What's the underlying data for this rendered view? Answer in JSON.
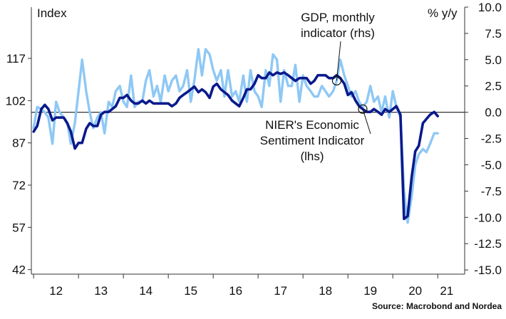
{
  "chart_data": {
    "type": "line",
    "left_axis_label": "Index",
    "right_axis_label": "% y/y",
    "source": "Source: Macrobond and Nordea",
    "colors": {
      "esi": "#0a1a8c",
      "gdp": "#8ec8f5",
      "zero_line": "#333333"
    },
    "x_ticks": [
      {
        "x": 2012.5,
        "label": "12"
      },
      {
        "x": 2013.5,
        "label": "13"
      },
      {
        "x": 2014.5,
        "label": "14"
      },
      {
        "x": 2015.5,
        "label": "15"
      },
      {
        "x": 2016.5,
        "label": "16"
      },
      {
        "x": 2017.5,
        "label": "17"
      },
      {
        "x": 2018.5,
        "label": "18"
      },
      {
        "x": 2019.5,
        "label": "19"
      },
      {
        "x": 2020.5,
        "label": "20"
      },
      {
        "x": 2021.2,
        "label": "21"
      }
    ],
    "xlim": [
      2011.95,
      2021.6
    ],
    "left_axis": {
      "ylim": [
        40.4,
        135.2
      ],
      "ticks": [
        {
          "v": 117,
          "label": "117"
        },
        {
          "v": 102,
          "label": "102"
        },
        {
          "v": 87,
          "label": "87"
        },
        {
          "v": 72,
          "label": "72"
        },
        {
          "v": 57,
          "label": "57"
        },
        {
          "v": 42,
          "label": "42"
        }
      ]
    },
    "right_axis": {
      "ylim": [
        -15.4,
        10.0
      ],
      "ticks": [
        {
          "v": 10,
          "label": "10.0"
        },
        {
          "v": 7.5,
          "label": "7.5"
        },
        {
          "v": 5,
          "label": "5.0"
        },
        {
          "v": 2.5,
          "label": "2.5"
        },
        {
          "v": 0,
          "label": "0.0"
        },
        {
          "v": -2.5,
          "label": "-2.5"
        },
        {
          "v": -5,
          "label": "-5.0"
        },
        {
          "v": -7.5,
          "label": "-7.5"
        },
        {
          "v": -10,
          "label": "-10.0"
        },
        {
          "v": -12.5,
          "label": "-12.5"
        },
        {
          "v": -15,
          "label": "-15.0"
        }
      ]
    },
    "annotations": [
      {
        "lines": [
          "GDP, monthly",
          "indicator (rhs)"
        ],
        "target_series": "gdp",
        "x": 2018.75,
        "y": 3.0
      },
      {
        "lines": [
          "NIER's Economic",
          "Sentiment Indicator",
          "(lhs)"
        ],
        "target_series": "esi",
        "x": 2019.33,
        "y": 99.0
      }
    ],
    "series": [
      {
        "key": "esi",
        "axis": "left",
        "name": "NIER's Economic Sentiment Indicator (lhs)",
        "points": [
          [
            2012.0,
            91
          ],
          [
            2012.08,
            93
          ],
          [
            2012.17,
            99
          ],
          [
            2012.25,
            100.5
          ],
          [
            2012.33,
            99
          ],
          [
            2012.42,
            95
          ],
          [
            2012.5,
            96
          ],
          [
            2012.58,
            96
          ],
          [
            2012.67,
            96
          ],
          [
            2012.75,
            94
          ],
          [
            2012.83,
            91
          ],
          [
            2012.92,
            85
          ],
          [
            2013.0,
            87
          ],
          [
            2013.08,
            87
          ],
          [
            2013.17,
            92
          ],
          [
            2013.25,
            94
          ],
          [
            2013.33,
            93
          ],
          [
            2013.42,
            93
          ],
          [
            2013.5,
            97
          ],
          [
            2013.58,
            98
          ],
          [
            2013.67,
            98
          ],
          [
            2013.75,
            99
          ],
          [
            2013.83,
            100
          ],
          [
            2013.92,
            103
          ],
          [
            2014.0,
            103
          ],
          [
            2014.08,
            104
          ],
          [
            2014.17,
            102
          ],
          [
            2014.25,
            101
          ],
          [
            2014.33,
            101
          ],
          [
            2014.42,
            102
          ],
          [
            2014.5,
            101
          ],
          [
            2014.58,
            102
          ],
          [
            2014.67,
            101
          ],
          [
            2014.75,
            101
          ],
          [
            2014.83,
            101
          ],
          [
            2014.92,
            101
          ],
          [
            2015.0,
            101
          ],
          [
            2015.08,
            100
          ],
          [
            2015.17,
            101
          ],
          [
            2015.25,
            103
          ],
          [
            2015.33,
            104
          ],
          [
            2015.42,
            105
          ],
          [
            2015.5,
            106
          ],
          [
            2015.58,
            107
          ],
          [
            2015.67,
            105
          ],
          [
            2015.75,
            106
          ],
          [
            2015.83,
            105
          ],
          [
            2015.92,
            103
          ],
          [
            2016.0,
            107
          ],
          [
            2016.08,
            108
          ],
          [
            2016.17,
            106
          ],
          [
            2016.25,
            105
          ],
          [
            2016.33,
            104
          ],
          [
            2016.42,
            102
          ],
          [
            2016.5,
            101
          ],
          [
            2016.58,
            100
          ],
          [
            2016.67,
            103
          ],
          [
            2016.75,
            106
          ],
          [
            2016.83,
            106
          ],
          [
            2016.92,
            108
          ],
          [
            2017.0,
            111
          ],
          [
            2017.08,
            110
          ],
          [
            2017.17,
            110
          ],
          [
            2017.25,
            112
          ],
          [
            2017.33,
            111
          ],
          [
            2017.42,
            112
          ],
          [
            2017.5,
            111.5
          ],
          [
            2017.58,
            112
          ],
          [
            2017.67,
            111
          ],
          [
            2017.75,
            110
          ],
          [
            2017.83,
            109
          ],
          [
            2017.92,
            110
          ],
          [
            2018.0,
            110
          ],
          [
            2018.08,
            110
          ],
          [
            2018.17,
            108
          ],
          [
            2018.25,
            109
          ],
          [
            2018.33,
            111
          ],
          [
            2018.42,
            111
          ],
          [
            2018.5,
            111
          ],
          [
            2018.58,
            110
          ],
          [
            2018.67,
            110
          ],
          [
            2018.75,
            111
          ],
          [
            2018.83,
            110
          ],
          [
            2018.92,
            108
          ],
          [
            2019.0,
            104
          ],
          [
            2019.08,
            105
          ],
          [
            2019.17,
            102
          ],
          [
            2019.25,
            100
          ],
          [
            2019.33,
            99
          ],
          [
            2019.42,
            98
          ],
          [
            2019.5,
            98
          ],
          [
            2019.58,
            99
          ],
          [
            2019.67,
            98
          ],
          [
            2019.75,
            97
          ],
          [
            2019.83,
            99
          ],
          [
            2019.92,
            98
          ],
          [
            2020.0,
            99
          ],
          [
            2020.08,
            100
          ],
          [
            2020.17,
            97
          ],
          [
            2020.25,
            60
          ],
          [
            2020.33,
            61
          ],
          [
            2020.42,
            75
          ],
          [
            2020.5,
            84
          ],
          [
            2020.58,
            86
          ],
          [
            2020.67,
            94
          ],
          [
            2020.75,
            95.5
          ],
          [
            2020.83,
            97
          ],
          [
            2020.92,
            98
          ],
          [
            2021.0,
            96.5
          ]
        ]
      },
      {
        "key": "gdp",
        "axis": "right",
        "name": "GDP, monthly indicator (rhs)",
        "points": [
          [
            2012.0,
            -1.5
          ],
          [
            2012.08,
            0.5
          ],
          [
            2012.17,
            0.3
          ],
          [
            2012.25,
            0.0
          ],
          [
            2012.33,
            -0.5
          ],
          [
            2012.42,
            -3.0
          ],
          [
            2012.5,
            1.0
          ],
          [
            2012.58,
            0.0
          ],
          [
            2012.67,
            -0.5
          ],
          [
            2012.75,
            -1.0
          ],
          [
            2012.83,
            -3.0
          ],
          [
            2012.92,
            -1.0
          ],
          [
            2013.0,
            2.0
          ],
          [
            2013.08,
            5.0
          ],
          [
            2013.17,
            2.0
          ],
          [
            2013.25,
            0.0
          ],
          [
            2013.33,
            -1.5
          ],
          [
            2013.42,
            -0.5
          ],
          [
            2013.5,
            0.0
          ],
          [
            2013.58,
            -2.0
          ],
          [
            2013.67,
            1.0
          ],
          [
            2013.75,
            0.5
          ],
          [
            2013.83,
            2.0
          ],
          [
            2013.92,
            2.5
          ],
          [
            2014.0,
            1.0
          ],
          [
            2014.08,
            0.5
          ],
          [
            2014.17,
            3.5
          ],
          [
            2014.25,
            0.5
          ],
          [
            2014.33,
            1.0
          ],
          [
            2014.42,
            1.0
          ],
          [
            2014.5,
            3.0
          ],
          [
            2014.58,
            4.0
          ],
          [
            2014.67,
            1.5
          ],
          [
            2014.75,
            2.5
          ],
          [
            2014.83,
            1.0
          ],
          [
            2014.92,
            3.5
          ],
          [
            2015.0,
            2.0
          ],
          [
            2015.08,
            3.0
          ],
          [
            2015.17,
            3.5
          ],
          [
            2015.25,
            2.0
          ],
          [
            2015.33,
            2.5
          ],
          [
            2015.42,
            4.0
          ],
          [
            2015.5,
            1.0
          ],
          [
            2015.58,
            3.0
          ],
          [
            2015.67,
            6.0
          ],
          [
            2015.75,
            3.5
          ],
          [
            2015.83,
            6.0
          ],
          [
            2015.92,
            5.5
          ],
          [
            2016.0,
            4.0
          ],
          [
            2016.08,
            3.0
          ],
          [
            2016.17,
            4.0
          ],
          [
            2016.25,
            1.5
          ],
          [
            2016.33,
            4.0
          ],
          [
            2016.42,
            1.5
          ],
          [
            2016.5,
            2.0
          ],
          [
            2016.58,
            1.0
          ],
          [
            2016.67,
            3.5
          ],
          [
            2016.75,
            1.0
          ],
          [
            2016.83,
            4.0
          ],
          [
            2016.92,
            2.0
          ],
          [
            2017.0,
            1.5
          ],
          [
            2017.08,
            0.5
          ],
          [
            2017.17,
            4.0
          ],
          [
            2017.25,
            2.5
          ],
          [
            2017.33,
            5.5
          ],
          [
            2017.42,
            5.0
          ],
          [
            2017.5,
            1.0
          ],
          [
            2017.58,
            4.0
          ],
          [
            2017.67,
            2.5
          ],
          [
            2017.75,
            2.5
          ],
          [
            2017.83,
            4.5
          ],
          [
            2017.92,
            1.0
          ],
          [
            2018.0,
            3.5
          ],
          [
            2018.08,
            2.5
          ],
          [
            2018.17,
            2.0
          ],
          [
            2018.25,
            1.5
          ],
          [
            2018.33,
            1.5
          ],
          [
            2018.42,
            2.5
          ],
          [
            2018.5,
            2.0
          ],
          [
            2018.58,
            1.5
          ],
          [
            2018.67,
            2.0
          ],
          [
            2018.75,
            3.0
          ],
          [
            2018.83,
            5.0
          ],
          [
            2018.92,
            3.5
          ],
          [
            2019.0,
            2.5
          ],
          [
            2019.08,
            1.5
          ],
          [
            2019.17,
            2.0
          ],
          [
            2019.25,
            1.0
          ],
          [
            2019.33,
            0.5
          ],
          [
            2019.42,
            1.0
          ],
          [
            2019.5,
            2.5
          ],
          [
            2019.58,
            1.0
          ],
          [
            2019.67,
            1.5
          ],
          [
            2019.75,
            0.0
          ],
          [
            2019.83,
            1.5
          ],
          [
            2019.92,
            -0.5
          ],
          [
            2020.0,
            2.0
          ],
          [
            2020.08,
            0.5
          ],
          [
            2020.17,
            -0.5
          ],
          [
            2020.25,
            -7.5
          ],
          [
            2020.33,
            -10.5
          ],
          [
            2020.42,
            -8.0
          ],
          [
            2020.5,
            -5.0
          ],
          [
            2020.58,
            -4.0
          ],
          [
            2020.67,
            -3.5
          ],
          [
            2020.75,
            -3.8
          ],
          [
            2020.83,
            -3.0
          ],
          [
            2020.92,
            -2.0
          ],
          [
            2021.0,
            -2.0
          ]
        ]
      }
    ]
  }
}
